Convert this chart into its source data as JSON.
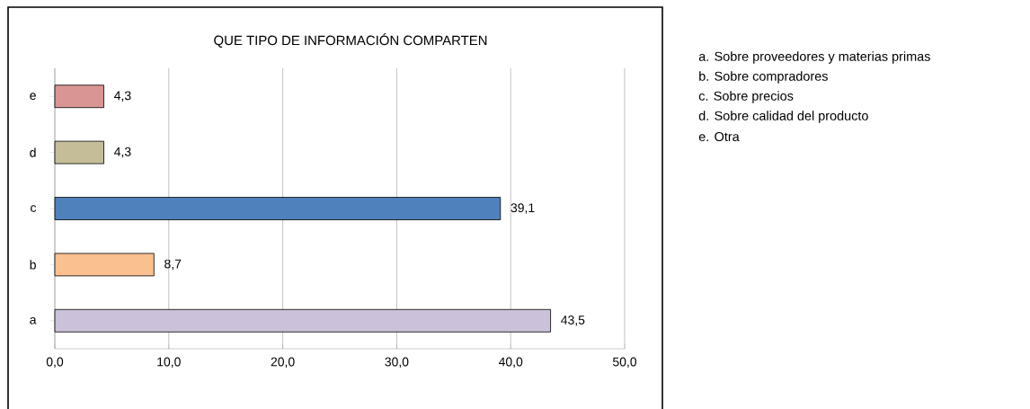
{
  "chart_data": {
    "type": "bar",
    "orientation": "horizontal",
    "title": "QUE TIPO DE INFORMACIÓN COMPARTEN",
    "categories": [
      "e",
      "d",
      "c",
      "b",
      "a"
    ],
    "values": [
      4.3,
      4.3,
      39.1,
      8.7,
      43.5
    ],
    "value_labels": [
      "4,3",
      "4,3",
      "39,1",
      "8,7",
      "43,5"
    ],
    "colors": [
      "#d99594",
      "#c4bd97",
      "#4f81bd",
      "#fac090",
      "#ccc1da"
    ],
    "xlim": [
      0,
      50
    ],
    "xticks": [
      {
        "value": 0,
        "label": "0,0"
      },
      {
        "value": 10,
        "label": "10,0"
      },
      {
        "value": 20,
        "label": "20,0"
      },
      {
        "value": 30,
        "label": "30,0"
      },
      {
        "value": 40,
        "label": "40,0"
      },
      {
        "value": 50,
        "label": "50,0"
      }
    ],
    "grid": "x",
    "annotations": [
      "a. Sobre proveedores y materias primas",
      "b. Sobre compradores",
      "c. Sobre precios",
      "d. Sobre calidad del producto",
      "e. Otra"
    ]
  }
}
